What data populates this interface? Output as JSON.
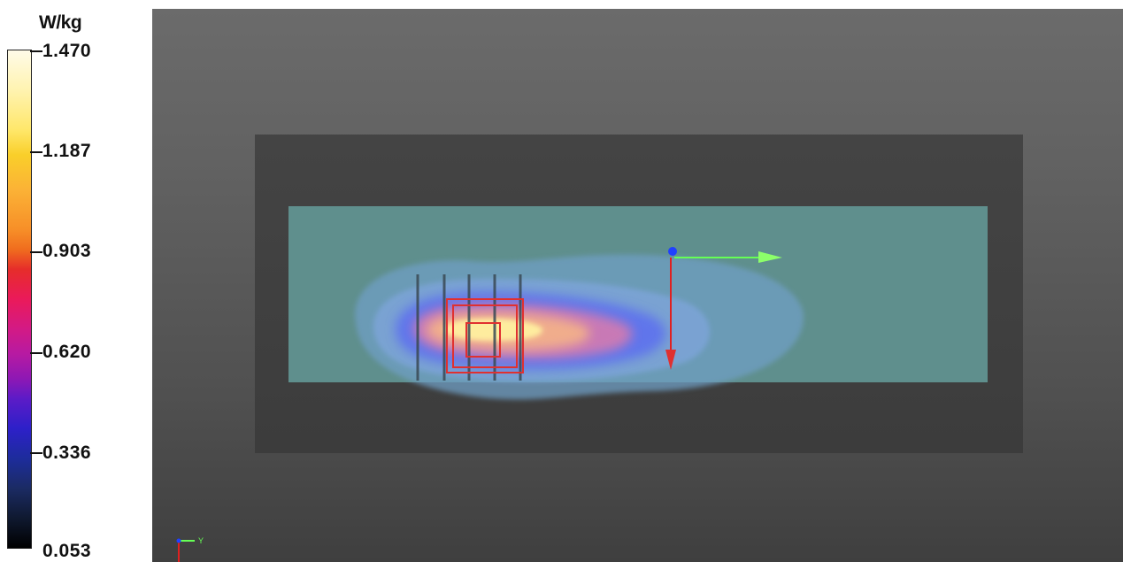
{
  "legend": {
    "unit": "W/kg",
    "ticks": [
      {
        "label": "1.470",
        "fraction": 1.0
      },
      {
        "label": "1.187",
        "fraction": 0.8
      },
      {
        "label": "0.903",
        "fraction": 0.6
      },
      {
        "label": "0.620",
        "fraction": 0.4
      },
      {
        "label": "0.336",
        "fraction": 0.2
      },
      {
        "label": "0.053",
        "fraction": 0.0
      }
    ]
  },
  "colors": {
    "viewport_top": "#6b6b6b",
    "scan_area": "#5f8f8d",
    "axis_x": "#66ff55",
    "axis_y": "#e02020",
    "axis_origin": "#2040ff",
    "probe_outline": "#e03030"
  },
  "viewport": {
    "axes_icon": "xyz-axes-icon",
    "orientation_label": "Y"
  }
}
